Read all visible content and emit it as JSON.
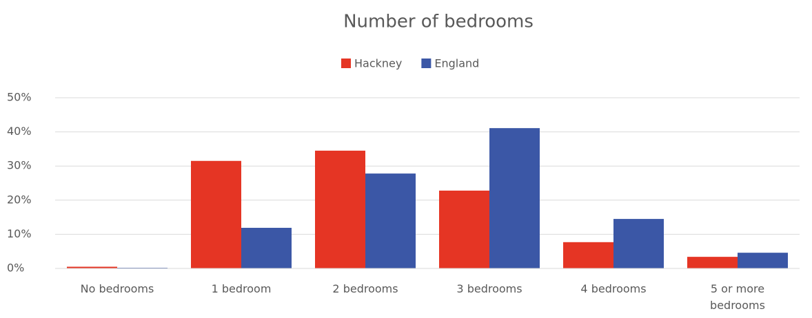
{
  "chart_data": {
    "type": "bar",
    "title": "Number of bedrooms",
    "categories": [
      "No bedrooms",
      "1 bedroom",
      "2 bedrooms",
      "3 bedrooms",
      "4 bedrooms",
      "5 or more bedrooms"
    ],
    "series": [
      {
        "name": "Hackney",
        "color": "#e53524",
        "values": [
          0.5,
          31.5,
          34.5,
          22.8,
          7.7,
          3.4
        ]
      },
      {
        "name": "England",
        "color": "#3b57a6",
        "values": [
          0.2,
          11.9,
          27.8,
          41.1,
          14.5,
          4.6
        ]
      }
    ],
    "ylim": [
      0,
      50
    ],
    "yticks": [
      {
        "value": 0,
        "label": "0%"
      },
      {
        "value": 10,
        "label": "10%"
      },
      {
        "value": 20,
        "label": "20%"
      },
      {
        "value": 30,
        "label": "30%"
      },
      {
        "value": 40,
        "label": "40%"
      },
      {
        "value": 50,
        "label": "50%"
      }
    ],
    "grid": true,
    "legend": "top"
  }
}
